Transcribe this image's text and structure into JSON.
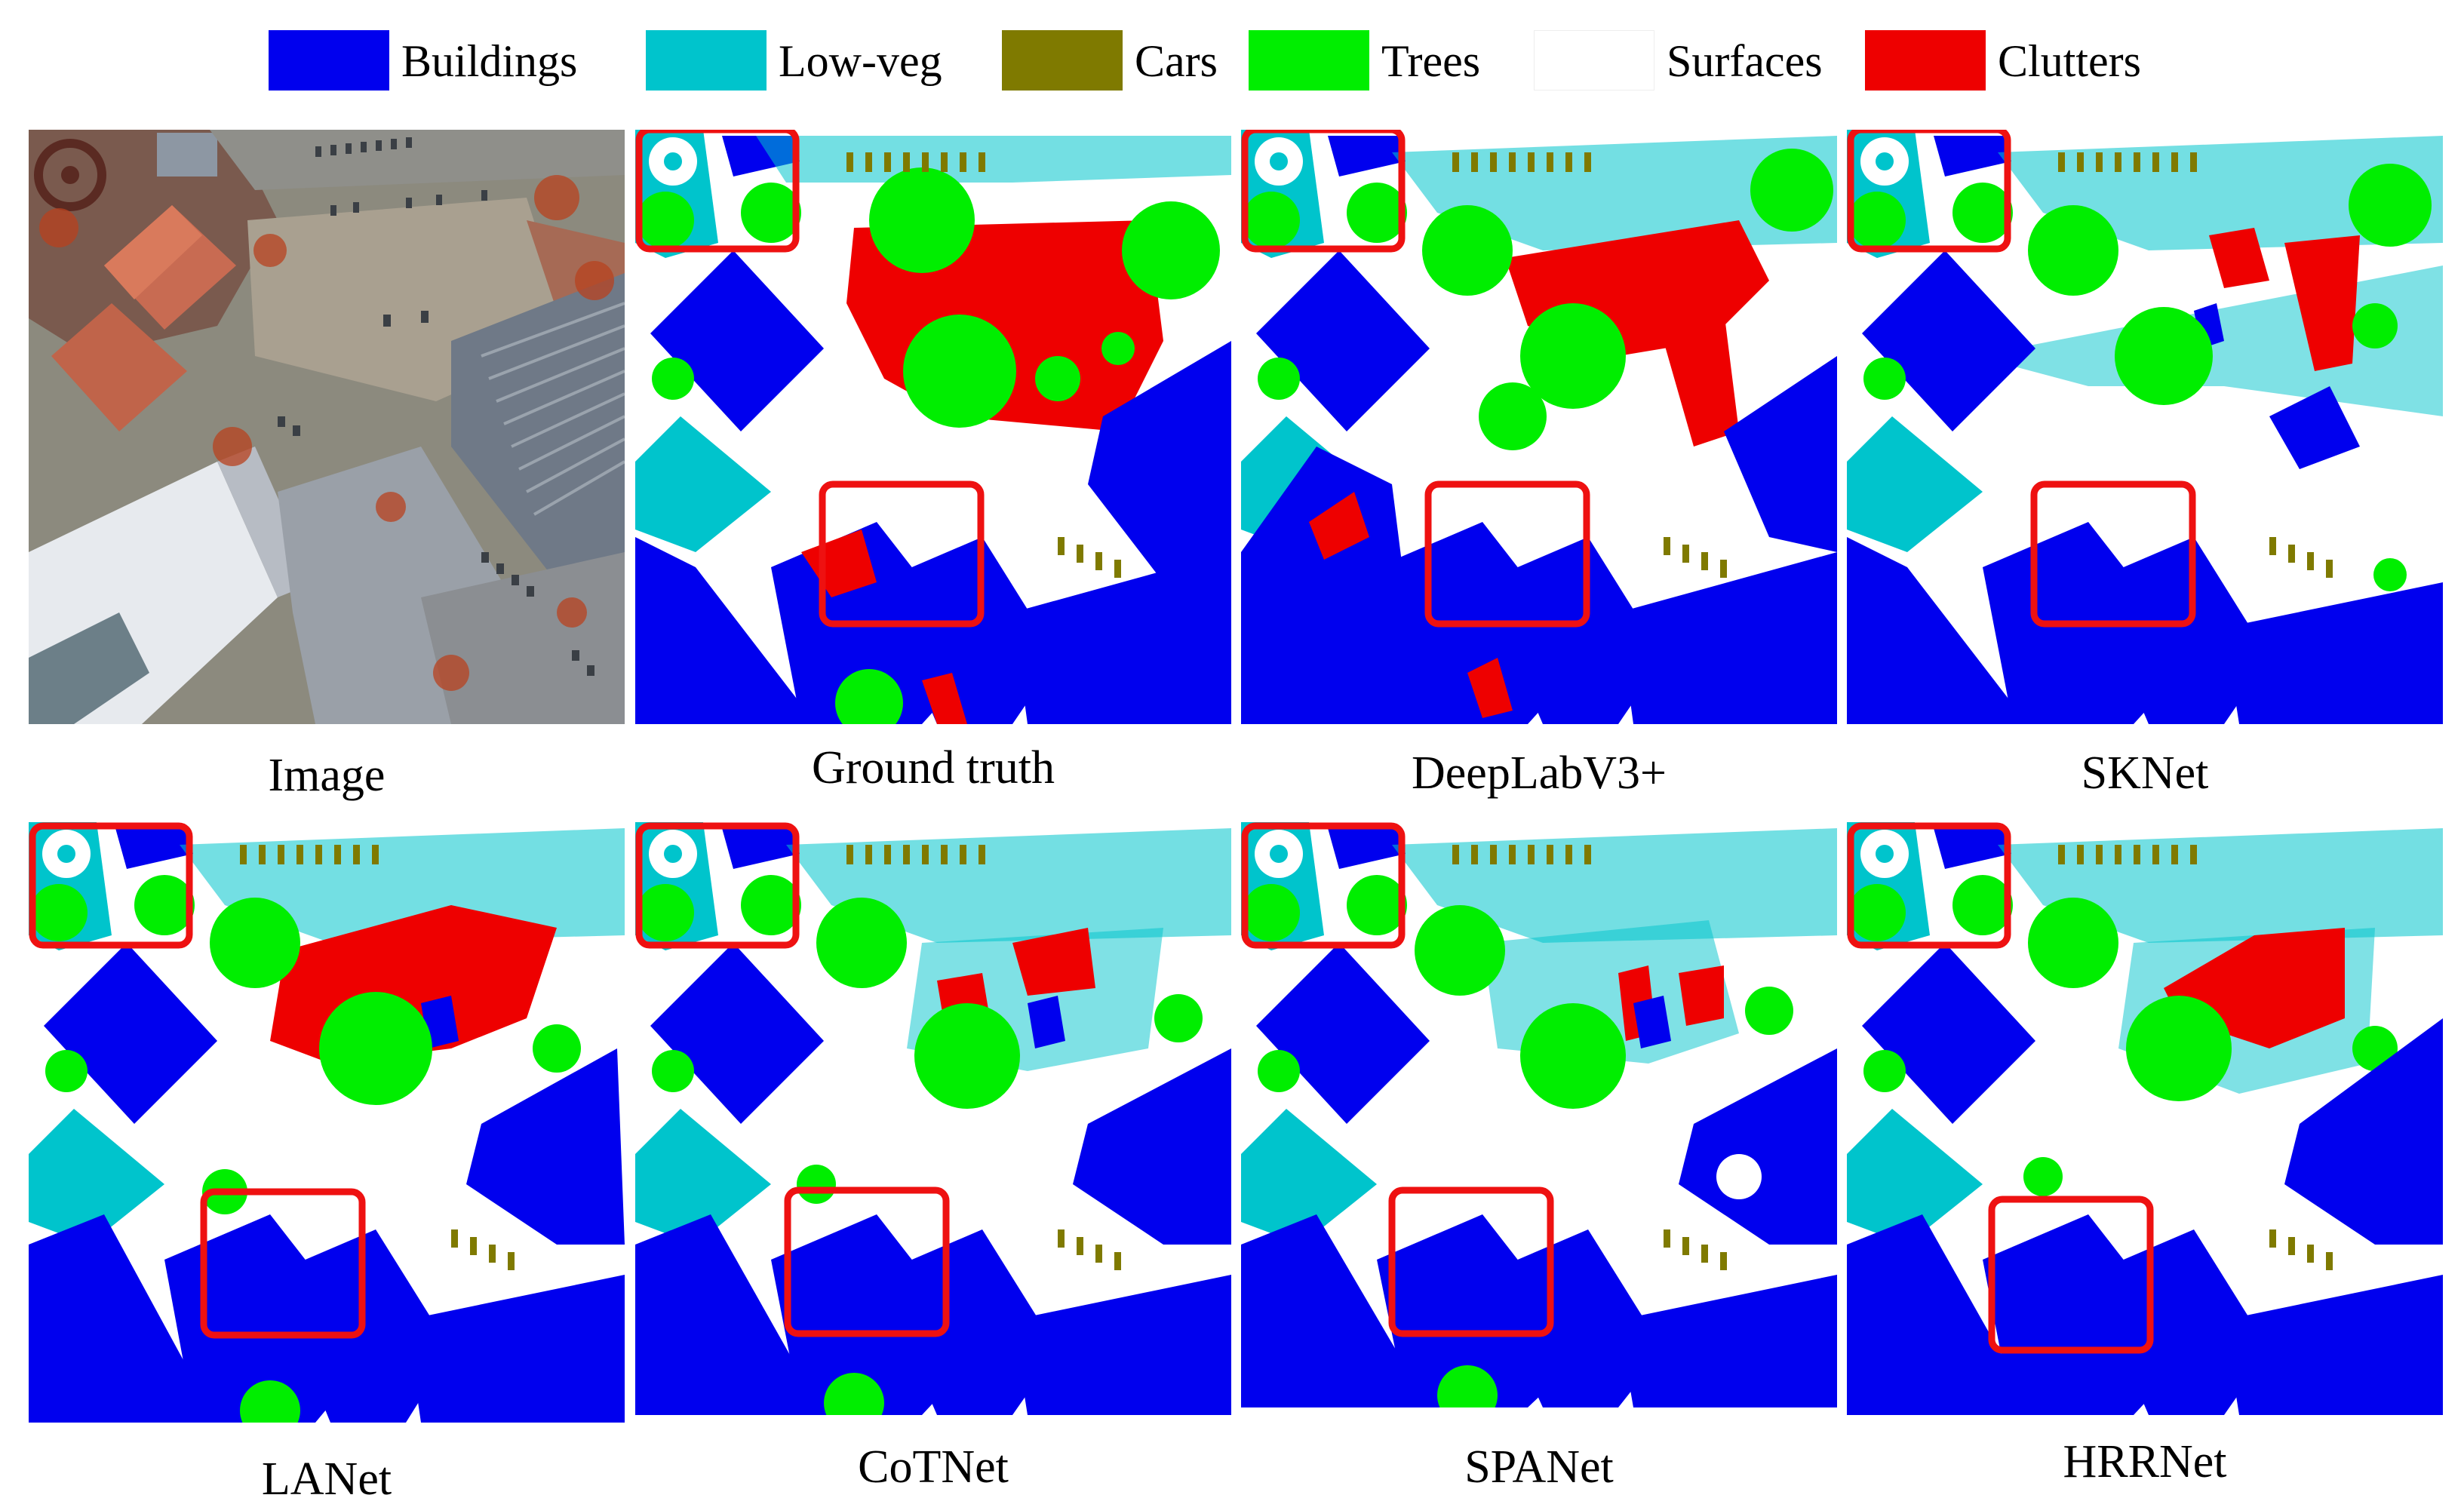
{
  "legend": [
    {
      "label": "Buildings",
      "color": "#0000ee"
    },
    {
      "label": "Low-veg",
      "color": "#00c4cc"
    },
    {
      "label": "Cars",
      "color": "#7f7a00"
    },
    {
      "label": "Trees",
      "color": "#00ee00"
    },
    {
      "label": "Surfaces",
      "color": "#ffffff"
    },
    {
      "label": "Clutters",
      "color": "#ee0000"
    }
  ],
  "panels": [
    {
      "caption": "Image"
    },
    {
      "caption": "Ground truth"
    },
    {
      "caption": "DeepLabV3+"
    },
    {
      "caption": "SKNet"
    },
    {
      "caption": "LANet"
    },
    {
      "caption": "CoTNet"
    },
    {
      "caption": "SPANet"
    },
    {
      "caption": "HRRNet"
    }
  ],
  "colors": {
    "buildings": "#0000ee",
    "lowveg": "#00c4cc",
    "cars": "#7f7a00",
    "trees": "#00ee00",
    "surfaces": "#ffffff",
    "clutters": "#ee0000",
    "highlight": "#ee1111"
  }
}
